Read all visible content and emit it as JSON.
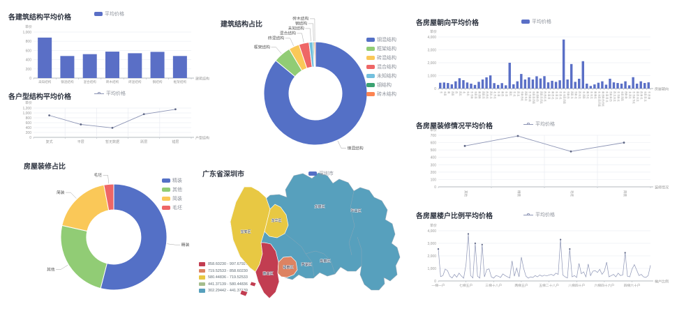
{
  "chart_data": [
    {
      "id": "building-structure-bar",
      "type": "bar",
      "title": "各建筑结构平均价格",
      "legend": [
        {
          "label": "平均价格",
          "color": "#5a6fc6",
          "icon": "rect"
        }
      ],
      "ylabel": "单价",
      "xlabel": "建筑结构",
      "ylim": [
        0,
        1000
      ],
      "ytick_step": 200,
      "categories": [
        "未知结构",
        "钢混结构",
        "混合结构",
        "砖木结构",
        "砖混结构",
        "钢结构",
        "框架结构"
      ],
      "values": [
        880,
        480,
        520,
        575,
        540,
        570,
        480
      ],
      "color": "#5a6fc6"
    },
    {
      "id": "structure-donut",
      "type": "pie",
      "title": "建筑结构占比",
      "slices": [
        {
          "label": "钢混结构",
          "value": 86,
          "color": "#5470c6"
        },
        {
          "label": "框架结构",
          "value": 5.5,
          "color": "#91cc75"
        },
        {
          "label": "砖混结构",
          "value": 3.3,
          "color": "#fac858"
        },
        {
          "label": "混合结构",
          "value": 3.2,
          "color": "#ee6666"
        },
        {
          "label": "未知结构",
          "value": 1.2,
          "color": "#73c0de"
        },
        {
          "label": "钢结构",
          "value": 0.4,
          "color": "#3ba272"
        },
        {
          "label": "砖木结构",
          "value": 0.4,
          "color": "#fc8452"
        }
      ]
    },
    {
      "id": "unit-type-line",
      "type": "line",
      "title": "各户型结构平均价格",
      "legend": [
        {
          "label": "平均价格",
          "color": "#8b93b4",
          "icon": "line"
        }
      ],
      "ylabel": "单价",
      "xlabel": "户型结构",
      "ylim": [
        0,
        1200
      ],
      "ytick_step": 200,
      "categories": [
        "复式",
        "平层",
        "暂无数据",
        "跃层",
        "错层"
      ],
      "values": [
        900,
        530,
        390,
        950,
        1150
      ],
      "color": "#8b93b4",
      "marker_color": "#5f6785"
    },
    {
      "id": "decoration-donut",
      "type": "pie",
      "title": "房屋装修占比",
      "slices": [
        {
          "label": "精装",
          "value": 54,
          "color": "#5470c6"
        },
        {
          "label": "其他",
          "value": 24.5,
          "color": "#91cc75"
        },
        {
          "label": "简装",
          "value": 18.5,
          "color": "#fac858"
        },
        {
          "label": "毛坯",
          "value": 3,
          "color": "#ee6666"
        }
      ]
    },
    {
      "id": "shenzhen-map",
      "type": "map",
      "title": "广东省深圳市",
      "legend": [
        {
          "label": "深圳市",
          "color": "#5470c6",
          "icon": "rect"
        }
      ],
      "districts": [
        {
          "name": "宝安区",
          "tier": 2
        },
        {
          "name": "龙华区",
          "tier": 2
        },
        {
          "name": "南山区",
          "tier": 0
        },
        {
          "name": "福田区",
          "tier": 1
        },
        {
          "name": "罗湖区",
          "tier": 4
        },
        {
          "name": "盐田区",
          "tier": 4
        },
        {
          "name": "龙岗区",
          "tier": 4
        },
        {
          "name": "坪山区",
          "tier": 4
        }
      ],
      "pieces": [
        {
          "label": "858.60230 - 997.67927",
          "color": "#c23d51"
        },
        {
          "label": "719.52533 - 858.60230",
          "color": "#dd8362"
        },
        {
          "label": "580.44836 - 719.52533",
          "color": "#e8c843"
        },
        {
          "label": "441.37139 - 580.44836",
          "color": "#a5bd8d"
        },
        {
          "label": "302.29442 - 441.37139",
          "color": "#57a0bd"
        }
      ]
    },
    {
      "id": "orientation-bar",
      "type": "bar",
      "title": "各房屋朝向平均价格",
      "legend": [
        {
          "label": "平均价格",
          "color": "#5a6fc6",
          "icon": "rect"
        }
      ],
      "ylabel": "单价",
      "xlabel": "房屋朝向",
      "ylim": [
        0,
        4000
      ],
      "ytick_step": 1000,
      "categories": [
        "东",
        "东南",
        "南",
        "西南",
        "西",
        "西北",
        "北",
        "东北",
        "东 东南",
        "东南 南",
        "南 西南",
        "西南 西",
        "西 西北",
        "西北 北",
        "北 东北",
        "东 南",
        "南 西",
        "东 西",
        "南北",
        "东 北",
        "西 北",
        "东南 西北",
        "西南 东北",
        "东 东南 南",
        "东南 南 西南",
        "南 西南 西",
        "西南 西 西北",
        "西 西北 北",
        "东 南 西",
        "南 西 北",
        "东 南 北",
        "东 西 北",
        "东 东南 西南",
        "东南 西",
        "西南 北",
        "东南 北",
        "西 东北",
        "东 西南",
        "南 东北",
        "东 东北",
        "南 南北",
        "东 东南 南 西南",
        "南 西南 西 西北",
        "东 南 西 北",
        "东南 南 西",
        "西 北 东北",
        "东 东南 北",
        "东南 西南",
        "西南 南",
        "北 西北",
        "东 东南 东北",
        "南 西 东北",
        "西 南 北",
        "东南 南 北",
        "东 西 南"
      ],
      "values": [
        450,
        470,
        430,
        330,
        560,
        800,
        650,
        470,
        380,
        280,
        520,
        700,
        870,
        1020,
        420,
        280,
        420,
        250,
        2000,
        330,
        560,
        1130,
        700,
        870,
        700,
        950,
        780,
        960,
        480,
        600,
        520,
        640,
        3800,
        700,
        1900,
        520,
        760,
        2120,
        380,
        200,
        320,
        450,
        560,
        300,
        760,
        480,
        430,
        380,
        560,
        250,
        880,
        380,
        560,
        430,
        480
      ],
      "color": "#5a6fc6"
    },
    {
      "id": "decoration-line",
      "type": "line",
      "title": "各房屋装修情况平均价格",
      "legend": [
        {
          "label": "平均价格",
          "color": "#8b93b4",
          "icon": "line"
        }
      ],
      "ylabel": "单价",
      "xlabel": "装修情况",
      "ylim": [
        0,
        700
      ],
      "ytick_step": 100,
      "categories": [
        "其他",
        "精装",
        "毛坯",
        "简装"
      ],
      "values": [
        555,
        690,
        480,
        600
      ],
      "color": "#8b93b4",
      "marker_color": "#5f6785"
    },
    {
      "id": "ladder-ratio-line",
      "type": "line",
      "title": "各房屋楼户比例平均价格",
      "legend": [
        {
          "label": "平均价格",
          "color": "#8b93b4",
          "icon": "line"
        }
      ],
      "ylabel": "单价",
      "xlabel": "梯户比例",
      "ylim": [
        0,
        4000
      ],
      "ytick_step": 1000,
      "x_tick_labels": [
        "一梯一户",
        "七梯五户",
        "三梯十八户",
        "两梯五户",
        "五梯二十八户",
        "八梯四十户",
        "六梯四十六户",
        "四梯六十户"
      ],
      "values": [
        2550,
        350,
        420,
        950,
        820,
        380,
        240,
        520,
        300,
        620,
        400,
        220,
        1300,
        3750,
        420,
        240,
        3000,
        380,
        230,
        2900,
        320,
        900,
        960,
        330,
        230,
        420,
        380,
        280,
        560,
        430,
        330,
        240,
        1600,
        380,
        1020,
        330,
        1900,
        1000,
        380,
        230,
        330,
        280,
        430,
        330,
        480,
        380,
        460,
        400,
        480,
        520,
        430,
        620,
        520,
        3300,
        480,
        330,
        240,
        2550,
        330,
        430,
        280,
        1400,
        580,
        730,
        330,
        1350,
        430,
        780,
        830,
        680,
        930,
        530,
        780,
        1500,
        330,
        430,
        520,
        330,
        620,
        430,
        480,
        2250,
        380,
        330,
        950,
        1300,
        880,
        430,
        520,
        330,
        280,
        430,
        1250
      ],
      "color": "#8b93b4",
      "marker_color": "#5f6785"
    }
  ]
}
